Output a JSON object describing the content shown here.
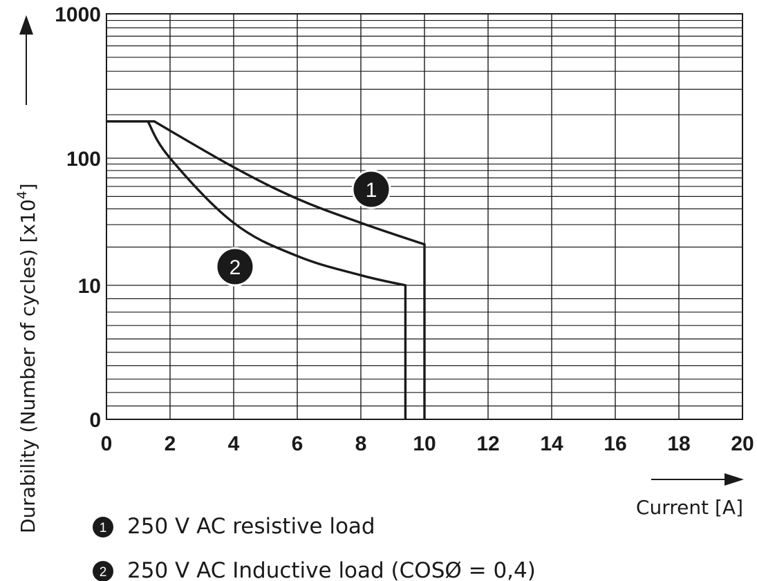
{
  "chart_data": {
    "type": "line",
    "xlabel": "Current [A]",
    "ylabel": "Durability (Number of cycles) [x10",
    "ylabel_superscript": "4",
    "ylabel_close": "]",
    "x_ticks": [
      "0",
      "2",
      "4",
      "6",
      "8",
      "10",
      "12",
      "14",
      "16",
      "18",
      "20"
    ],
    "xlim": [
      0,
      20
    ],
    "y_ticks": [
      "0",
      "10",
      "100",
      "1000"
    ],
    "y_scale": "log (0 at bottom)",
    "grid": true,
    "series": [
      {
        "marker": "1",
        "name": "250 V AC resistive load",
        "x": [
          0,
          1.5,
          4,
          6,
          8,
          10,
          10
        ],
        "y": [
          180,
          180,
          85,
          48,
          31,
          21,
          0
        ]
      },
      {
        "marker": "2",
        "name": "250 V AC Inductive load (COSØ = 0,4)",
        "x": [
          0,
          1.3,
          2,
          4,
          6,
          8,
          9.4,
          9.4
        ],
        "y": [
          180,
          180,
          100,
          31,
          17,
          12,
          10,
          0
        ]
      }
    ]
  }
}
